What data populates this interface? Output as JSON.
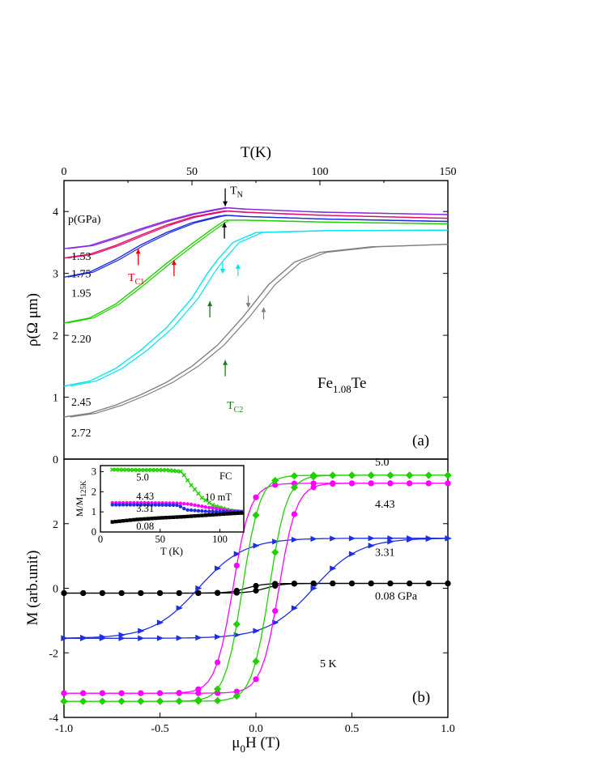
{
  "chart_data": [
    {
      "type": "line",
      "panel_label": "(a)",
      "x_top_label": "T(K)",
      "ylabel": "ρ(Ω μm)",
      "xlim": [
        0,
        150
      ],
      "ylim": [
        0,
        4.5
      ],
      "x_ticks": [
        "0",
        "50",
        "100",
        "150"
      ],
      "y_ticks": [
        "0",
        "1",
        "2",
        "3",
        "4"
      ],
      "sample_label": "Fe1.08Te",
      "sample_base": "Fe",
      "sample_sub": "1.08",
      "sample_end": "Te",
      "pressure_header": "p(GPa)",
      "annotations": {
        "TN": {
          "base": "T",
          "sub": "N",
          "color": "#000000",
          "T": 63
        },
        "TC1": {
          "base": "T",
          "sub": "C1",
          "color": "#e8000b",
          "T": [
            29,
            43
          ]
        },
        "TC2": {
          "base": "T",
          "sub": "C2",
          "color": "#1a7a1a",
          "T": [
            57,
            63
          ]
        }
      },
      "series": [
        {
          "name": "1.53",
          "color": "#8a2be2",
          "points": [
            [
              0,
              3.4
            ],
            [
              10,
              3.45
            ],
            [
              20,
              3.58
            ],
            [
              30,
              3.72
            ],
            [
              40,
              3.85
            ],
            [
              50,
              3.96
            ],
            [
              60,
              4.04
            ],
            [
              63,
              4.06
            ],
            [
              70,
              4.04
            ],
            [
              100,
              3.99
            ],
            [
              150,
              3.95
            ]
          ]
        },
        {
          "name": "1.75",
          "color": "#e0106a",
          "points": [
            [
              0,
              3.25
            ],
            [
              10,
              3.31
            ],
            [
              20,
              3.45
            ],
            [
              30,
              3.62
            ],
            [
              40,
              3.78
            ],
            [
              50,
              3.91
            ],
            [
              60,
              3.99
            ],
            [
              63,
              4.01
            ],
            [
              70,
              3.99
            ],
            [
              100,
              3.94
            ],
            [
              150,
              3.89
            ]
          ]
        },
        {
          "name": "1.95",
          "color": "#1f2ee0",
          "points": [
            [
              0,
              2.94
            ],
            [
              10,
              3.02
            ],
            [
              20,
              3.22
            ],
            [
              30,
              3.46
            ],
            [
              40,
              3.66
            ],
            [
              50,
              3.82
            ],
            [
              60,
              3.92
            ],
            [
              63,
              3.94
            ],
            [
              70,
              3.92
            ],
            [
              100,
              3.88
            ],
            [
              150,
              3.84
            ]
          ]
        },
        {
          "name": "2.20",
          "color": "#21d000",
          "points": [
            [
              0,
              2.2
            ],
            [
              10,
              2.28
            ],
            [
              20,
              2.5
            ],
            [
              30,
              2.82
            ],
            [
              40,
              3.16
            ],
            [
              50,
              3.48
            ],
            [
              58,
              3.72
            ],
            [
              63,
              3.86
            ],
            [
              70,
              3.86
            ],
            [
              100,
              3.83
            ],
            [
              150,
              3.8
            ]
          ]
        },
        {
          "name": "2.45",
          "color": "#00e5ee",
          "points": [
            [
              0,
              1.18
            ],
            [
              10,
              1.26
            ],
            [
              20,
              1.46
            ],
            [
              30,
              1.76
            ],
            [
              40,
              2.12
            ],
            [
              50,
              2.6
            ],
            [
              56,
              3.0
            ],
            [
              60,
              3.22
            ],
            [
              66,
              3.5
            ],
            [
              75,
              3.66
            ],
            [
              100,
              3.69
            ],
            [
              150,
              3.7
            ]
          ]
        },
        {
          "name": "2.72",
          "color": "#808080",
          "points": [
            [
              0,
              0.68
            ],
            [
              10,
              0.74
            ],
            [
              20,
              0.87
            ],
            [
              30,
              1.04
            ],
            [
              40,
              1.24
            ],
            [
              50,
              1.5
            ],
            [
              60,
              1.84
            ],
            [
              70,
              2.3
            ],
            [
              80,
              2.82
            ],
            [
              90,
              3.18
            ],
            [
              100,
              3.34
            ],
            [
              120,
              3.43
            ],
            [
              150,
              3.47
            ]
          ]
        }
      ]
    },
    {
      "type": "line",
      "panel_label": "(b)",
      "xlabel": "μ0H (T)",
      "xlabel_base": "μ",
      "xlabel_sub": "0",
      "xlabel_end": "H (T)",
      "ylabel": "M (arb.unit)",
      "xlim": [
        -1.0,
        1.0
      ],
      "ylim": [
        -4,
        4
      ],
      "x_ticks": [
        "-1.0",
        "-0.5",
        "0.0",
        "0.5",
        "1.0"
      ],
      "y_ticks": [
        "-4",
        "-2",
        "0",
        "2"
      ],
      "temperature_label": "5 K",
      "series": [
        {
          "name": "0.08 GPa",
          "color": "#000000",
          "marker": "circle",
          "Ms": 0.15,
          "Hc": 0.05
        },
        {
          "name": "3.31",
          "color": "#1f2ee0",
          "marker": "triangle-right",
          "Ms": 1.55,
          "Hc": 0.3
        },
        {
          "name": "4.43",
          "color": "#ff00ff",
          "marker": "circle",
          "Ms": 3.25,
          "Hc": 0.12
        },
        {
          "name": "5.0",
          "color": "#21d000",
          "marker": "diamond",
          "Ms": 3.5,
          "Hc": 0.07
        }
      ],
      "inset": {
        "xlabel": "T (K)",
        "ylabel": "M/M125K",
        "ylabel_base": "M/M",
        "ylabel_sub": "125K",
        "xlim": [
          0,
          120
        ],
        "ylim": [
          0,
          3.3
        ],
        "x_ticks": [
          "0",
          "50",
          "100"
        ],
        "y_ticks": [
          "0",
          "1",
          "2",
          "3"
        ],
        "field_mode": "FC",
        "field": "10 mT",
        "series": [
          {
            "name": "5.0",
            "color": "#21d000",
            "marker": "x",
            "points": [
              [
                10,
                3.1
              ],
              [
                30,
                3.08
              ],
              [
                55,
                3.08
              ],
              [
                68,
                3.0
              ],
              [
                75,
                2.4
              ],
              [
                85,
                1.7
              ],
              [
                95,
                1.3
              ],
              [
                110,
                1.05
              ],
              [
                120,
                1.0
              ]
            ]
          },
          {
            "name": "4.43",
            "color": "#ff00ff",
            "marker": "circle",
            "points": [
              [
                10,
                1.45
              ],
              [
                40,
                1.45
              ],
              [
                65,
                1.43
              ],
              [
                75,
                1.38
              ],
              [
                90,
                1.22
              ],
              [
                105,
                1.08
              ],
              [
                120,
                1.0
              ]
            ]
          },
          {
            "name": "3.31",
            "color": "#1f2ee0",
            "marker": "circle",
            "points": [
              [
                10,
                1.35
              ],
              [
                40,
                1.35
              ],
              [
                65,
                1.33
              ],
              [
                72,
                1.1
              ],
              [
                90,
                1.02
              ],
              [
                120,
                1.0
              ]
            ]
          },
          {
            "name": "0.08",
            "color": "#000000",
            "marker": "square",
            "points": [
              [
                10,
                0.5
              ],
              [
                30,
                0.62
              ],
              [
                50,
                0.7
              ],
              [
                70,
                0.76
              ],
              [
                90,
                0.84
              ],
              [
                105,
                0.9
              ],
              [
                120,
                0.95
              ]
            ]
          }
        ]
      }
    }
  ]
}
